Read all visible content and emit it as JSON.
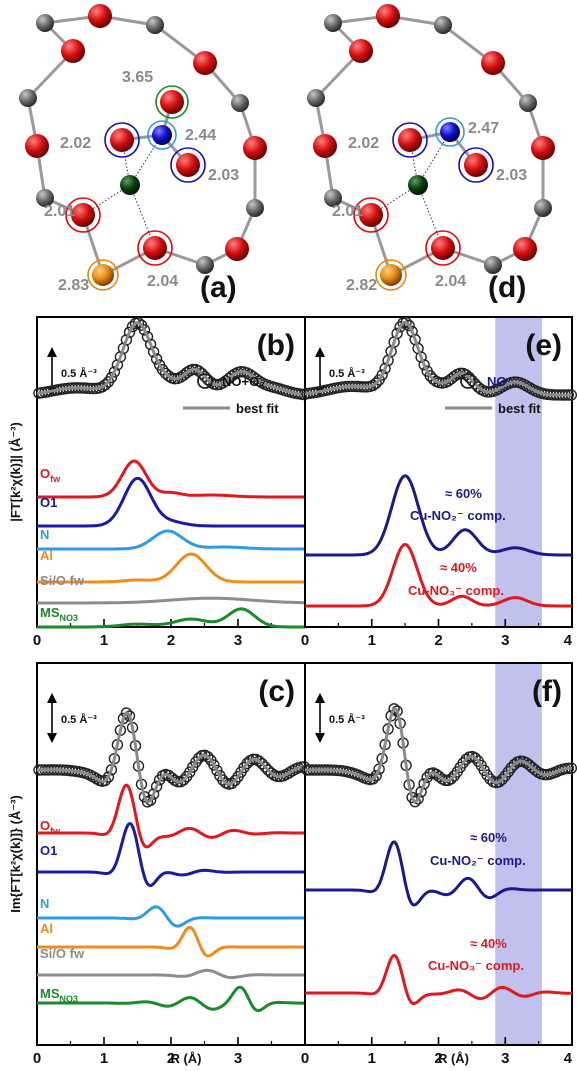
{
  "colors": {
    "ofw": "#e0191f",
    "o1": "#1a1aa6",
    "n": "#2f9be0",
    "al": "#ef8c1a",
    "sio": "#8c8c8c",
    "ms": "#1b8a2a",
    "navy": "#1a1a8c",
    "fit": "#8a8a8a",
    "band": "#8e8ee0",
    "c_o": "#d40f0f",
    "c_cu": "#0d3d12",
    "c_n": "#1010c8",
    "c_si": "#6a6a6a",
    "c_al": "#e48a10"
  },
  "structures": [
    {
      "id": "a",
      "panel_label": "(a)",
      "distances": [
        "2.02",
        "2.44",
        "3.65",
        "2.03",
        "2.01",
        "2.04",
        "2.83"
      ]
    },
    {
      "id": "d",
      "panel_label": "(d)",
      "distances": [
        "2.02",
        "2.47",
        "2.03",
        "2.01",
        "2.04",
        "2.82"
      ]
    }
  ],
  "chart_data": [
    {
      "id": "b",
      "type": "line",
      "panel_label": "(b)",
      "ylabel": "|FT[k²χ(k)]| (Å⁻³)",
      "scale_bar": "0.5 Å⁻³",
      "xlim": [
        0,
        4
      ],
      "xticks": [
        "0",
        "1",
        "2",
        "3",
        "4"
      ],
      "legend": {
        "exp": "NO+O₂",
        "fit": "best fit"
      },
      "series": [
        {
          "name": "O",
          "sub": "fw",
          "color": "ofw"
        },
        {
          "name": "O1",
          "sub": "",
          "color": "o1"
        },
        {
          "name": "N",
          "sub": "",
          "color": "n"
        },
        {
          "name": "Al",
          "sub": "",
          "color": "al"
        },
        {
          "name": "Si/O fw",
          "sub": "",
          "color": "sio"
        },
        {
          "name": "MS",
          "sub": "NO3",
          "color": "ms"
        }
      ]
    },
    {
      "id": "c",
      "type": "line",
      "panel_label": "(c)",
      "ylabel": "Im{FT[k²χ(k)]} (Å⁻³)",
      "scale_bar": "0.5 Å⁻³",
      "xlim": [
        0,
        4
      ],
      "xticks": [
        "0",
        "1",
        "2",
        "3",
        "4"
      ],
      "xlabel": "R (Å)",
      "series": [
        {
          "name": "O",
          "sub": "fw",
          "color": "ofw"
        },
        {
          "name": "O1",
          "sub": "",
          "color": "o1"
        },
        {
          "name": "N",
          "sub": "",
          "color": "n"
        },
        {
          "name": "Al",
          "sub": "",
          "color": "al"
        },
        {
          "name": "Si/O fw",
          "sub": "",
          "color": "sio"
        },
        {
          "name": "MS",
          "sub": "NO3",
          "color": "ms"
        }
      ]
    },
    {
      "id": "e",
      "type": "line",
      "panel_label": "(e)",
      "scale_bar": "0.5 Å⁻³",
      "xlim": [
        0,
        4
      ],
      "xticks": [
        "0",
        "1",
        "2",
        "3",
        "4"
      ],
      "highlight_range": [
        2.85,
        3.55
      ],
      "legend": {
        "exp": "NO",
        "fit": "best fit"
      },
      "components": [
        {
          "pct": "≈ 60%",
          "label": "Cu-NO₂⁻ comp.",
          "color": "navy"
        },
        {
          "pct": "≈ 40%",
          "label": "Cu-NO₃⁻ comp.",
          "color": "ofw"
        }
      ]
    },
    {
      "id": "f",
      "type": "line",
      "panel_label": "(f)",
      "scale_bar": "0.5 Å⁻³",
      "xlim": [
        0,
        4
      ],
      "xticks": [
        "0",
        "1",
        "2",
        "3",
        "4"
      ],
      "xlabel": "R (Å)",
      "highlight_range": [
        2.85,
        3.55
      ],
      "components": [
        {
          "pct": "≈ 60%",
          "label": "Cu-NO₂⁻ comp.",
          "color": "navy"
        },
        {
          "pct": "≈ 40%",
          "label": "Cu-NO₃⁻ comp.",
          "color": "ofw"
        }
      ]
    }
  ]
}
